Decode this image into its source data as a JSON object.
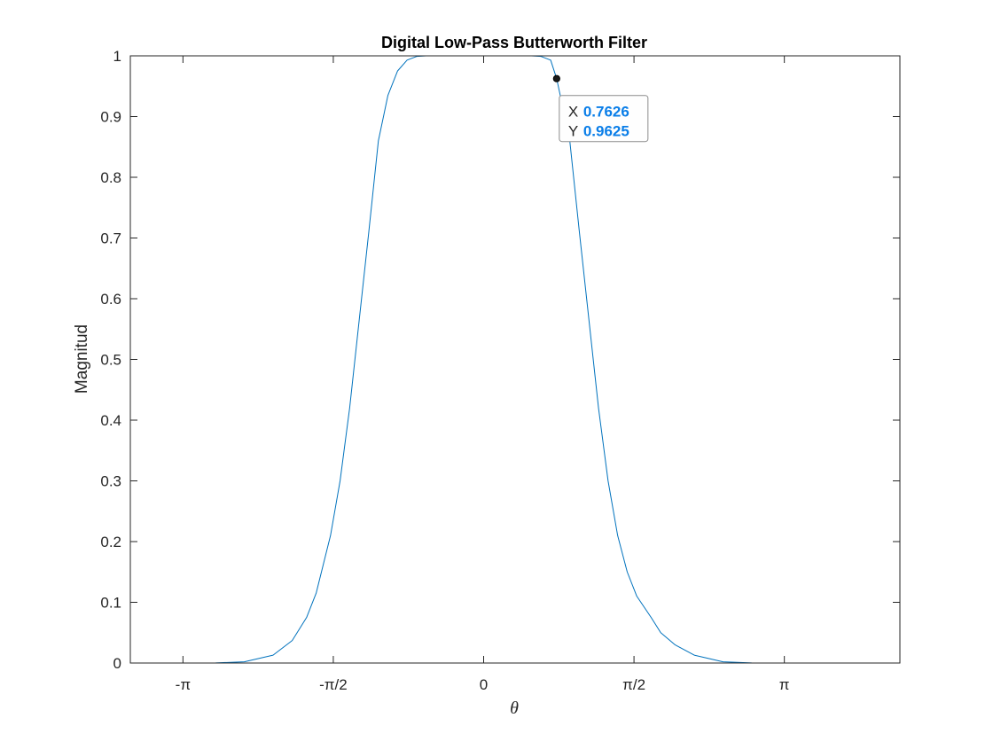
{
  "chart_data": {
    "type": "line",
    "title": "Digital Low-Pass Butterworth Filter",
    "xlabel": "θ",
    "ylabel": "Magnitud",
    "xlim": [
      -3.6914,
      4.3489
    ],
    "ylim": [
      0,
      1
    ],
    "x_ticks": [
      {
        "value": -3.14159,
        "label": "-π"
      },
      {
        "value": -1.5708,
        "label": "-π/2"
      },
      {
        "value": 0,
        "label": "0"
      },
      {
        "value": 1.5708,
        "label": "π/2"
      },
      {
        "value": 3.14159,
        "label": "π"
      }
    ],
    "y_ticks": [
      0,
      0.1,
      0.2,
      0.3,
      0.4,
      0.5,
      0.6,
      0.7,
      0.8,
      0.9,
      1
    ],
    "y_tick_labels": [
      "0",
      "0.1",
      "0.2",
      "0.3",
      "0.4",
      "0.5",
      "0.6",
      "0.7",
      "0.8",
      "0.9",
      "1"
    ],
    "grid": false,
    "box": true,
    "series": [
      {
        "color": "#0072bd",
        "x": [
          -3.1416,
          -2.8,
          -2.5,
          -2.2,
          -2.0,
          -1.85,
          -1.75,
          -1.6,
          -1.5,
          -1.4,
          -1.3,
          -1.2,
          -1.1,
          -1.0,
          -0.9,
          -0.8,
          -0.7,
          -0.6,
          -0.5,
          -0.4,
          -0.3,
          -0.2,
          -0.1,
          0.0,
          0.1,
          0.2,
          0.3,
          0.4,
          0.5,
          0.6,
          0.7,
          0.7626,
          0.8,
          0.9,
          1.0,
          1.1,
          1.2,
          1.3,
          1.4,
          1.5,
          1.6,
          1.75,
          1.85,
          2.0,
          2.2,
          2.5,
          2.8,
          3.1416
        ],
        "y": [
          0.0,
          0.0002,
          0.002,
          0.013,
          0.037,
          0.075,
          0.115,
          0.21,
          0.3,
          0.42,
          0.565,
          0.71,
          0.86,
          0.935,
          0.975,
          0.993,
          0.999,
          1.0,
          1.0,
          1.0,
          1.0,
          1.0,
          1.0,
          1.0,
          1.0,
          1.0,
          1.0,
          1.0,
          1.0,
          0.999,
          0.993,
          0.9625,
          0.935,
          0.86,
          0.71,
          0.565,
          0.42,
          0.3,
          0.21,
          0.15,
          0.11,
          0.075,
          0.05,
          0.03,
          0.013,
          0.002,
          0.0002,
          0.0
        ]
      }
    ],
    "datatip": {
      "x_key": "X",
      "y_key": "Y",
      "x": 0.7626,
      "y": 0.9625,
      "x_text": "0.7626",
      "y_text": "0.9625"
    }
  }
}
